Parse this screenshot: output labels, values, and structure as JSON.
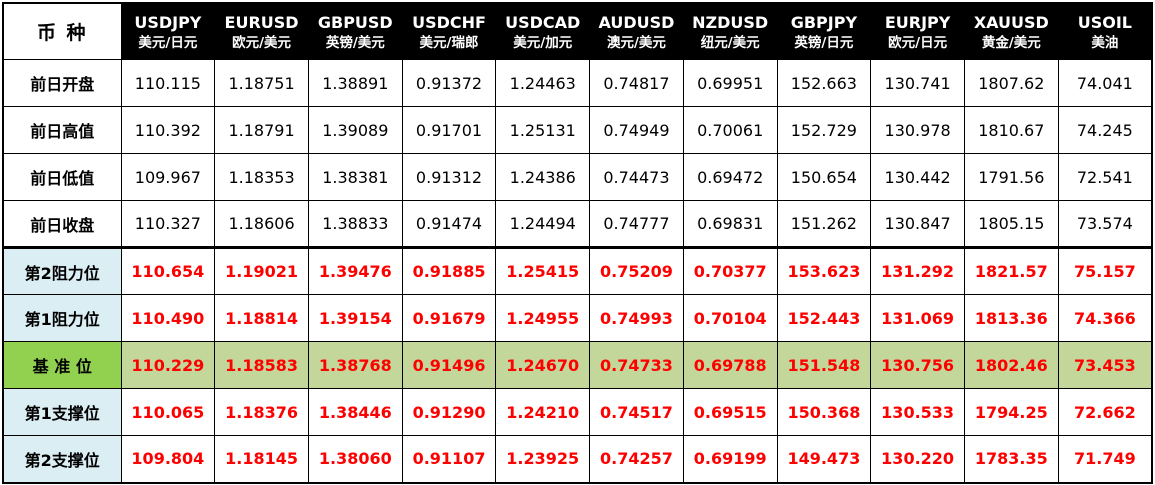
{
  "colors": {
    "header_bg": "#000000",
    "header_text": "#ffffff",
    "value_red": "#ff0000",
    "label_blue": "#dbeef4",
    "pivot_label_green": "#92d050",
    "pivot_row_green": "#c4d79b",
    "grid_border": "#000000"
  },
  "chart_data": {
    "type": "table",
    "corner_label": "币 种",
    "columns": [
      {
        "symbol": "USDJPY",
        "pair": "美元/日元"
      },
      {
        "symbol": "EURUSD",
        "pair": "欧元/美元"
      },
      {
        "symbol": "GBPUSD",
        "pair": "英镑/美元"
      },
      {
        "symbol": "USDCHF",
        "pair": "美元/瑞郎"
      },
      {
        "symbol": "USDCAD",
        "pair": "美元/加元"
      },
      {
        "symbol": "AUDUSD",
        "pair": "澳元/美元"
      },
      {
        "symbol": "NZDUSD",
        "pair": "纽元/美元"
      },
      {
        "symbol": "GBPJPY",
        "pair": "英镑/日元"
      },
      {
        "symbol": "EURJPY",
        "pair": "欧元/日元"
      },
      {
        "symbol": "XAUUSD",
        "pair": "黄金/美元"
      },
      {
        "symbol": "USOIL",
        "pair": "美油"
      }
    ],
    "rows": [
      {
        "label": "前日开盘",
        "style": "history",
        "values": [
          "110.115",
          "1.18751",
          "1.38891",
          "0.91372",
          "1.24463",
          "0.74817",
          "0.69951",
          "152.663",
          "130.741",
          "1807.62",
          "74.041"
        ]
      },
      {
        "label": "前日高值",
        "style": "history",
        "values": [
          "110.392",
          "1.18791",
          "1.39089",
          "0.91701",
          "1.25131",
          "0.74949",
          "0.70061",
          "152.729",
          "130.978",
          "1810.67",
          "74.245"
        ]
      },
      {
        "label": "前日低值",
        "style": "history",
        "values": [
          "109.967",
          "1.18353",
          "1.38381",
          "0.91312",
          "1.24386",
          "0.74473",
          "0.69472",
          "150.654",
          "130.442",
          "1791.56",
          "72.541"
        ]
      },
      {
        "label": "前日收盘",
        "style": "history",
        "values": [
          "110.327",
          "1.18606",
          "1.38833",
          "0.91474",
          "1.24494",
          "0.74777",
          "0.69831",
          "151.262",
          "130.847",
          "1805.15",
          "73.574"
        ]
      },
      {
        "label": "第2阻力位",
        "style": "resistance",
        "values": [
          "110.654",
          "1.19021",
          "1.39476",
          "0.91885",
          "1.25415",
          "0.75209",
          "0.70377",
          "153.623",
          "131.292",
          "1821.57",
          "75.157"
        ]
      },
      {
        "label": "第1阻力位",
        "style": "resistance",
        "values": [
          "110.490",
          "1.18814",
          "1.39154",
          "0.91679",
          "1.24955",
          "0.74993",
          "0.70104",
          "152.443",
          "131.069",
          "1813.36",
          "74.366"
        ]
      },
      {
        "label": "基 准 位",
        "style": "pivot",
        "values": [
          "110.229",
          "1.18583",
          "1.38768",
          "0.91496",
          "1.24670",
          "0.74733",
          "0.69788",
          "151.548",
          "130.756",
          "1802.46",
          "73.453"
        ]
      },
      {
        "label": "第1支撑位",
        "style": "support",
        "values": [
          "110.065",
          "1.18376",
          "1.38446",
          "0.91290",
          "1.24210",
          "0.74517",
          "0.69515",
          "150.368",
          "130.533",
          "1794.25",
          "72.662"
        ]
      },
      {
        "label": "第2支撑位",
        "style": "support",
        "values": [
          "109.804",
          "1.18145",
          "1.38060",
          "0.91107",
          "1.23925",
          "0.74257",
          "0.69199",
          "149.473",
          "130.220",
          "1783.35",
          "71.749"
        ]
      }
    ]
  }
}
